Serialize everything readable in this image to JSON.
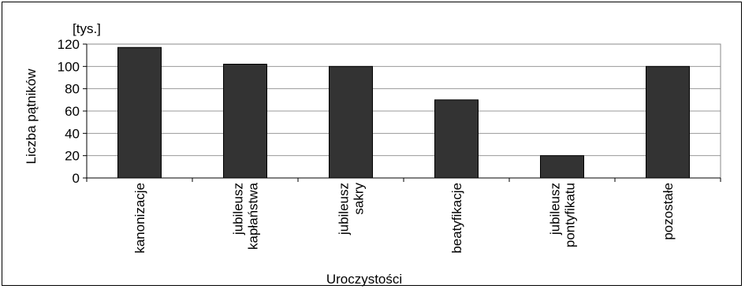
{
  "chart_data": {
    "type": "bar",
    "unit_label": "[tys.]",
    "ylabel": "Liczba pątników",
    "xlabel": "Uroczystości",
    "categories": [
      [
        "kanonizacje"
      ],
      [
        "jubileusz",
        "kapłaństwa"
      ],
      [
        "jubileusz",
        "sakry"
      ],
      [
        "beatyfikacje"
      ],
      [
        "jubileusz",
        "pontyfikatu"
      ],
      [
        "pozostałe"
      ]
    ],
    "values": [
      117,
      102,
      100,
      70,
      20,
      100
    ],
    "ylim": [
      0,
      120
    ],
    "yticks": [
      0,
      20,
      40,
      60,
      80,
      100,
      120
    ],
    "grid": true,
    "bar_color": "#333333"
  }
}
